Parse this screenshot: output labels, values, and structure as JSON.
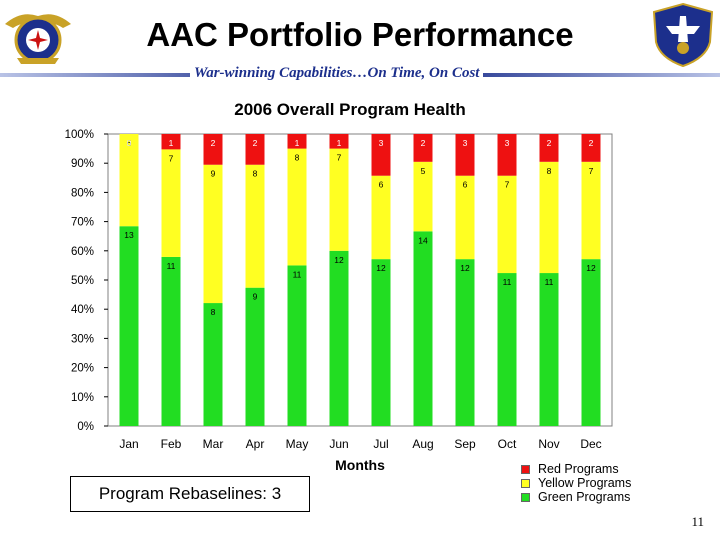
{
  "slide": {
    "title": "AAC Portfolio Performance",
    "subtitle": "War-winning Capabilities…On Time, On Cost",
    "page_number": "11",
    "rebaseline_text": "Program Rebaselines: 3"
  },
  "colors": {
    "red": "#ee1111",
    "yellow": "#ffff22",
    "green": "#22dd22",
    "navy": "#1c2f8c"
  },
  "chart_data": {
    "type": "bar",
    "stacked": "percent",
    "title": "2006 Overall Program Health",
    "xlabel": "Months",
    "ylabel": "",
    "ylim": [
      0,
      100
    ],
    "y_ticks": [
      "0%",
      "10%",
      "20%",
      "30%",
      "40%",
      "50%",
      "60%",
      "70%",
      "80%",
      "90%",
      "100%"
    ],
    "categories": [
      "Jan",
      "Feb",
      "Mar",
      "Apr",
      "May",
      "Jun",
      "Jul",
      "Aug",
      "Sep",
      "Oct",
      "Nov",
      "Dec"
    ],
    "series": [
      {
        "name": "Green Programs",
        "color_key": "green",
        "values": [
          13,
          11,
          8,
          9,
          11,
          12,
          12,
          14,
          12,
          11,
          11,
          12
        ]
      },
      {
        "name": "Yellow Programs",
        "color_key": "yellow",
        "values": [
          6,
          7,
          9,
          8,
          8,
          7,
          6,
          5,
          6,
          7,
          8,
          7
        ]
      },
      {
        "name": "Red Programs",
        "color_key": "red",
        "values": [
          0,
          1,
          2,
          2,
          1,
          1,
          3,
          2,
          3,
          3,
          2,
          2
        ]
      }
    ],
    "legend_order": [
      "Red Programs",
      "Yellow Programs",
      "Green Programs"
    ],
    "legend_position": "bottom-right"
  }
}
